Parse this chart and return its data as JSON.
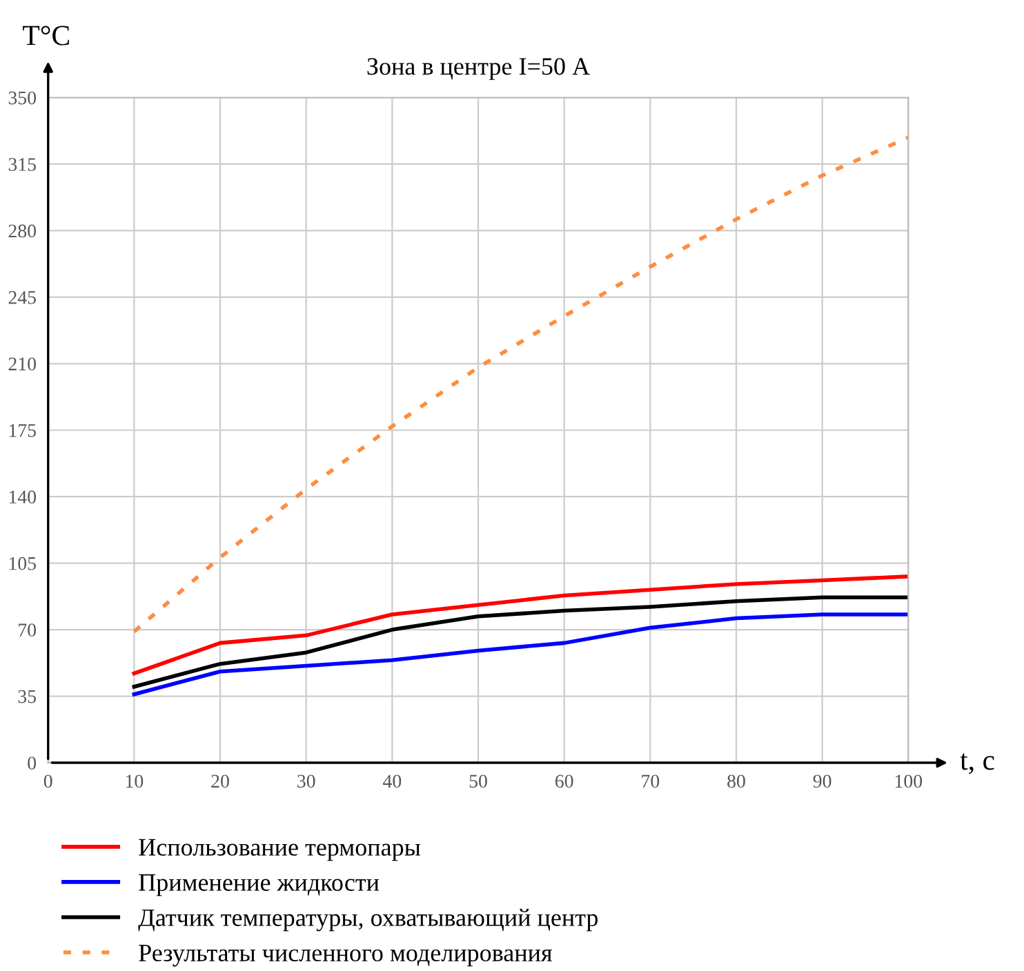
{
  "chart_data": {
    "type": "line",
    "title": "Зона в центре I=50 А",
    "xlabel": "t, c",
    "ylabel": "T°C",
    "x": [
      10,
      20,
      30,
      40,
      50,
      60,
      70,
      80,
      90,
      100
    ],
    "series": [
      {
        "name": "Использование термопары",
        "color": "#ff0000",
        "values": [
          47,
          63,
          67,
          78,
          83,
          88,
          91,
          94,
          96,
          98
        ]
      },
      {
        "name": "Применение жидкости",
        "color": "#0000ff",
        "values": [
          36,
          48,
          51,
          54,
          59,
          63,
          71,
          76,
          78,
          78
        ]
      },
      {
        "name": "Датчик температуры, охватывающий центр",
        "color": "#000000",
        "values": [
          40,
          52,
          58,
          70,
          77,
          80,
          82,
          85,
          87,
          87
        ]
      },
      {
        "name": "Результаты численного моделирования",
        "color": "#ff8c40",
        "line_style": "dotted",
        "values": [
          69,
          108,
          144,
          177,
          208,
          235,
          261,
          286,
          309,
          329
        ]
      }
    ],
    "xlim": [
      0,
      100
    ],
    "xticks": [
      0,
      10,
      20,
      30,
      40,
      50,
      60,
      70,
      80,
      90,
      100
    ],
    "ylim": [
      0,
      350
    ],
    "yticks": [
      0,
      35,
      70,
      105,
      140,
      175,
      210,
      245,
      280,
      315,
      350
    ],
    "grid": true,
    "legend": "bottom",
    "marker": "none",
    "line_style": "solid"
  }
}
